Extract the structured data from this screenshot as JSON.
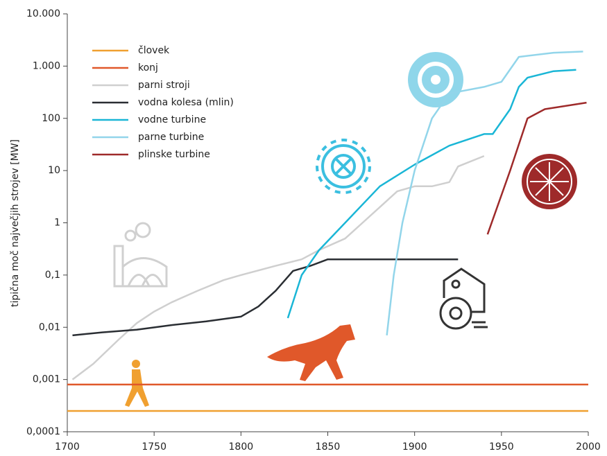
{
  "chart_data": {
    "type": "line",
    "y_label": "tipična moč največjih strojev [MW]",
    "log_scale": true,
    "xlim": [
      1700,
      2000
    ],
    "xticks": [
      1700,
      1750,
      1800,
      1850,
      1900,
      1950,
      2000
    ],
    "ylim": [
      0.0001,
      10000
    ],
    "yticks": [
      {
        "value": 0.0001,
        "label": "0,0001"
      },
      {
        "value": 0.001,
        "label": "0,001"
      },
      {
        "value": 0.01,
        "label": "0,01"
      },
      {
        "value": 0.1,
        "label": "0,1"
      },
      1,
      10,
      100,
      {
        "value": 1000,
        "label": "1.000"
      },
      {
        "value": 10000,
        "label": "10.000"
      }
    ],
    "legend": "top-left",
    "series": [
      {
        "name": "človek",
        "color": "#f0a030",
        "x": [
          1700,
          2000
        ],
        "values": [
          0.00025,
          0.00025
        ]
      },
      {
        "name": "konj",
        "color": "#e0582a",
        "x": [
          1700,
          2000
        ],
        "values": [
          0.0008,
          0.0008
        ]
      },
      {
        "name": "parni stroji",
        "color": "#cfcfcf",
        "x": [
          1703,
          1715,
          1730,
          1740,
          1750,
          1760,
          1775,
          1790,
          1800,
          1820,
          1835,
          1845,
          1860,
          1870,
          1880,
          1890,
          1900,
          1910,
          1920,
          1925,
          1940
        ],
        "values": [
          0.001,
          0.002,
          0.006,
          0.012,
          0.02,
          0.03,
          0.05,
          0.08,
          0.1,
          0.15,
          0.2,
          0.3,
          0.5,
          1,
          2,
          4,
          5,
          5,
          6,
          12,
          19
        ]
      },
      {
        "name": "vodna kolesa (mlin)",
        "color": "#2a2e33",
        "x": [
          1703,
          1720,
          1740,
          1760,
          1780,
          1800,
          1810,
          1820,
          1830,
          1840,
          1850,
          1860,
          1880,
          1900,
          1925
        ],
        "values": [
          0.007,
          0.008,
          0.009,
          0.011,
          0.013,
          0.016,
          0.025,
          0.05,
          0.12,
          0.15,
          0.2,
          0.2,
          0.2,
          0.2,
          0.2
        ]
      },
      {
        "name": "vodne turbine",
        "color": "#1ab6d6",
        "x": [
          1827,
          1835,
          1845,
          1860,
          1880,
          1900,
          1920,
          1940,
          1945,
          1955,
          1960,
          1965,
          1980,
          1993
        ],
        "values": [
          0.015,
          0.1,
          0.3,
          1,
          5,
          13,
          30,
          50,
          50,
          150,
          400,
          600,
          800,
          850
        ]
      },
      {
        "name": "parne turbine",
        "color": "#92d5ea",
        "x": [
          1884,
          1888,
          1893,
          1900,
          1910,
          1920,
          1940,
          1950,
          1960,
          1980,
          1997
        ],
        "values": [
          0.007,
          0.1,
          1,
          10,
          100,
          300,
          400,
          500,
          1500,
          1800,
          1900
        ]
      },
      {
        "name": "plinske turbine",
        "color": "#9e2a2a",
        "x": [
          1942,
          1955,
          1965,
          1975,
          1999
        ],
        "values": [
          0.6,
          10,
          100,
          150,
          200
        ]
      }
    ]
  }
}
